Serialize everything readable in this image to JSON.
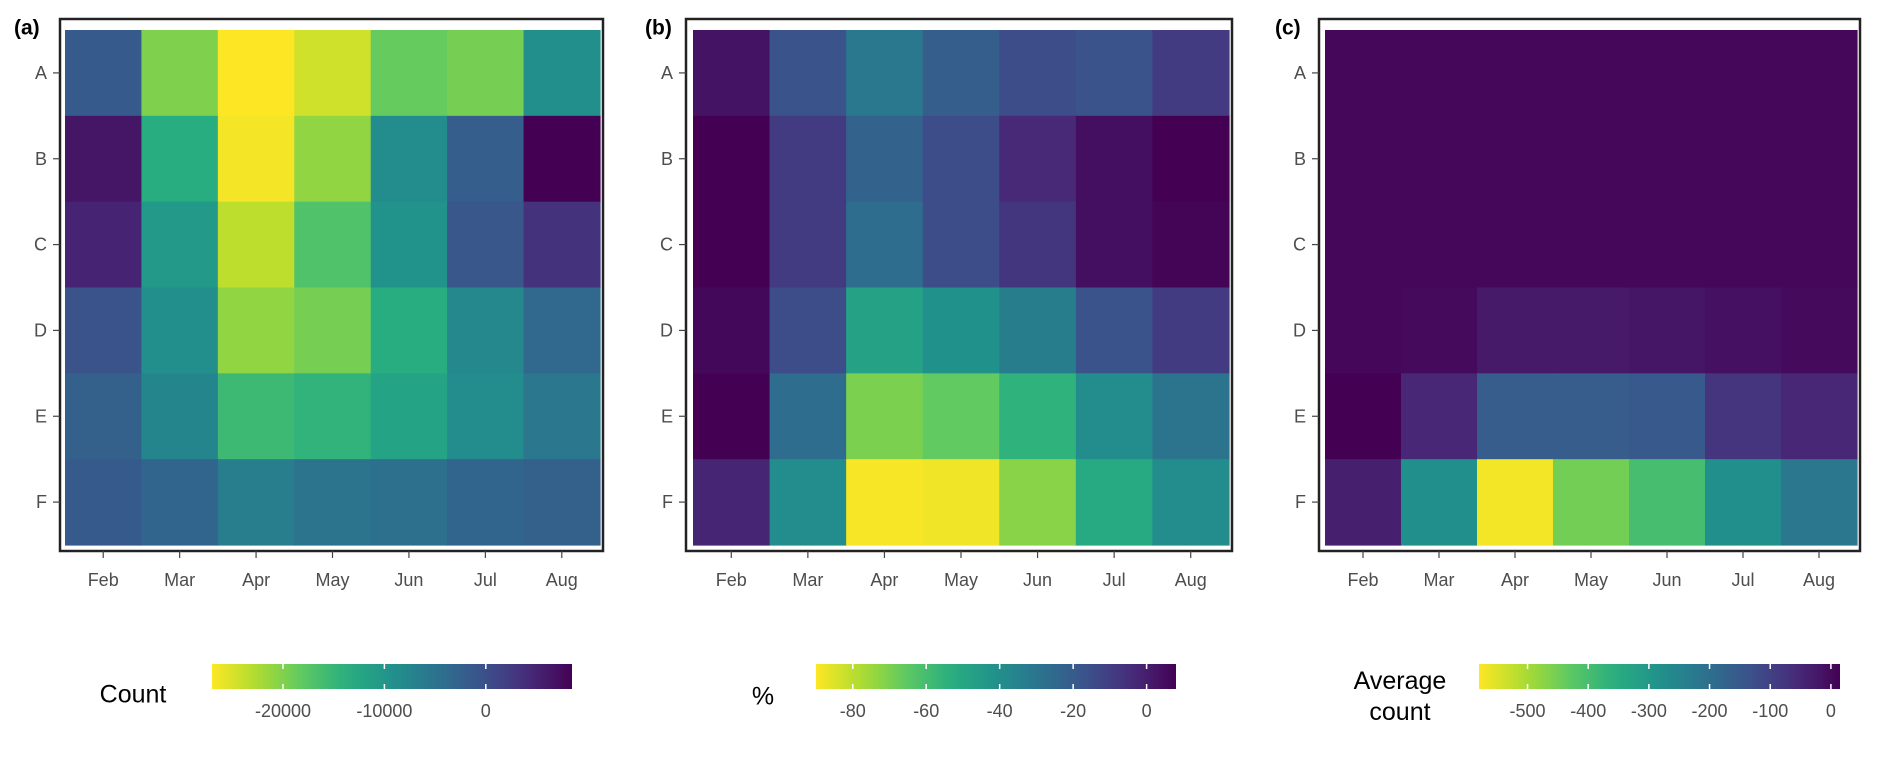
{
  "figure": {
    "cmap": [
      "#440154",
      "#472d7b",
      "#3b528b",
      "#2c728e",
      "#21918c",
      "#28ae80",
      "#5ec962",
      "#addc30",
      "#fde725"
    ]
  },
  "chart_data": [
    {
      "type": "heatmap",
      "panel_label": "(a)",
      "x_categories": [
        "Feb",
        "Mar",
        "Apr",
        "May",
        "Jun",
        "Jul",
        "Aug"
      ],
      "y_categories": [
        "A",
        "B",
        "C",
        "D",
        "E",
        "F"
      ],
      "values": [
        [
          -1500,
          -20000,
          -27000,
          -24500,
          -18500,
          -19500,
          -9000
        ],
        [
          6500,
          -13500,
          -26500,
          -21000,
          -8500,
          -2000,
          8500
        ],
        [
          5000,
          -10500,
          -23500,
          -17000,
          -9500,
          -1000,
          3500
        ],
        [
          -500,
          -9000,
          -21000,
          -19500,
          -13500,
          -8000,
          -3500
        ],
        [
          -2500,
          -7500,
          -15500,
          -14500,
          -12000,
          -8500,
          -5500
        ],
        [
          -1500,
          -3000,
          -6500,
          -5000,
          -4500,
          -3000,
          -2500
        ]
      ],
      "colorbar": {
        "title": "Count",
        "ticks": [
          "-20000",
          "-10000",
          "0"
        ],
        "tick_values": [
          -20000,
          -10000,
          0
        ],
        "min": -27000,
        "max": 8500,
        "reverse": true
      }
    },
    {
      "type": "heatmap",
      "panel_label": "(b)",
      "x_categories": [
        "Feb",
        "Mar",
        "Apr",
        "May",
        "Jun",
        "Jul",
        "Aug"
      ],
      "y_categories": [
        "A",
        "B",
        "C",
        "D",
        "E",
        "F"
      ],
      "values": [
        [
          3,
          -17,
          -31,
          -21,
          -15,
          -17,
          -9
        ],
        [
          8,
          -9,
          -23,
          -15,
          -3,
          4,
          8
        ],
        [
          8,
          -9,
          -27,
          -15,
          -7,
          4,
          7
        ],
        [
          6,
          -15,
          -48,
          -41,
          -33,
          -17,
          -9
        ],
        [
          8,
          -27,
          -70,
          -66,
          -55,
          -39,
          -29
        ],
        [
          -2,
          -39,
          -89,
          -88,
          -72,
          -51,
          -39
        ]
      ],
      "colorbar": {
        "title": "%",
        "ticks": [
          "-80",
          "-60",
          "-40",
          "-20",
          "0"
        ],
        "tick_values": [
          -80,
          -60,
          -40,
          -20,
          0
        ],
        "min": -90,
        "max": 8,
        "reverse": true
      }
    },
    {
      "type": "heatmap",
      "panel_label": "(c)",
      "x_categories": [
        "Feb",
        "Mar",
        "Apr",
        "May",
        "Jun",
        "Jul",
        "Aug"
      ],
      "y_categories": [
        "A",
        "B",
        "C",
        "D",
        "E",
        "F"
      ],
      "values": [
        [
          5,
          5,
          5,
          5,
          5,
          5,
          5
        ],
        [
          5,
          5,
          5,
          5,
          5,
          5,
          5
        ],
        [
          5,
          5,
          5,
          5,
          5,
          5,
          5
        ],
        [
          5,
          0,
          -25,
          -25,
          -20,
          -10,
          0
        ],
        [
          15,
          -50,
          -160,
          -160,
          -150,
          -75,
          -50
        ],
        [
          -35,
          -280,
          -570,
          -450,
          -400,
          -280,
          -220
        ]
      ],
      "colorbar": {
        "title": [
          "Average",
          "count"
        ],
        "ticks": [
          "-500",
          "-400",
          "-300",
          "-200",
          "-100",
          "0"
        ],
        "tick_values": [
          -500,
          -400,
          -300,
          -200,
          -100,
          0
        ],
        "min": -580,
        "max": 15,
        "reverse": true
      }
    }
  ]
}
